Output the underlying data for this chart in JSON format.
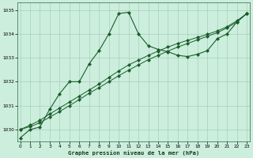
{
  "title": "Graphe pression niveau de la mer (hPa)",
  "bg_color": "#cceedd",
  "grid_color": "#aaccbb",
  "line_color": "#1a5c2a",
  "ylim": [
    1029.5,
    1035.3
  ],
  "xlim": [
    -0.3,
    23.3
  ],
  "yticks": [
    1030,
    1031,
    1032,
    1033,
    1034,
    1035
  ],
  "xticks": [
    0,
    1,
    2,
    3,
    4,
    5,
    6,
    7,
    8,
    9,
    10,
    11,
    12,
    13,
    14,
    15,
    16,
    17,
    18,
    19,
    20,
    21,
    22,
    23
  ],
  "series1_x": [
    0,
    1,
    2,
    3,
    4,
    5,
    6,
    7,
    8,
    9,
    10,
    11,
    12,
    13,
    14,
    15,
    16,
    17,
    18,
    19,
    20,
    21,
    22,
    23
  ],
  "series1_y": [
    1029.65,
    1030.0,
    1030.1,
    1030.85,
    1031.5,
    1032.0,
    1032.0,
    1032.75,
    1033.3,
    1034.0,
    1034.85,
    1034.9,
    1034.0,
    1033.5,
    1033.35,
    1033.25,
    1033.1,
    1033.05,
    1033.15,
    1033.3,
    1033.8,
    1034.0,
    1034.5,
    1034.85
  ],
  "series2_x": [
    0,
    1,
    2,
    3,
    4,
    5,
    6,
    7,
    8,
    9,
    10,
    11,
    12,
    13,
    14,
    15,
    16,
    17,
    18,
    19,
    20,
    21,
    22,
    23
  ],
  "series2_y": [
    1030.0,
    1030.12,
    1030.28,
    1030.52,
    1030.75,
    1031.0,
    1031.25,
    1031.52,
    1031.75,
    1032.0,
    1032.25,
    1032.48,
    1032.7,
    1032.92,
    1033.1,
    1033.28,
    1033.45,
    1033.6,
    1033.75,
    1033.9,
    1034.05,
    1034.25,
    1034.5,
    1034.85
  ],
  "series3_x": [
    0,
    1,
    2,
    3,
    4,
    5,
    6,
    7,
    8,
    9,
    10,
    11,
    12,
    13,
    14,
    15,
    16,
    17,
    18,
    19,
    20,
    21,
    22,
    23
  ],
  "series3_y": [
    1030.0,
    1030.18,
    1030.38,
    1030.65,
    1030.9,
    1031.15,
    1031.4,
    1031.65,
    1031.9,
    1032.18,
    1032.45,
    1032.7,
    1032.9,
    1033.1,
    1033.28,
    1033.45,
    1033.6,
    1033.73,
    1033.85,
    1033.98,
    1034.12,
    1034.3,
    1034.55,
    1034.85
  ]
}
